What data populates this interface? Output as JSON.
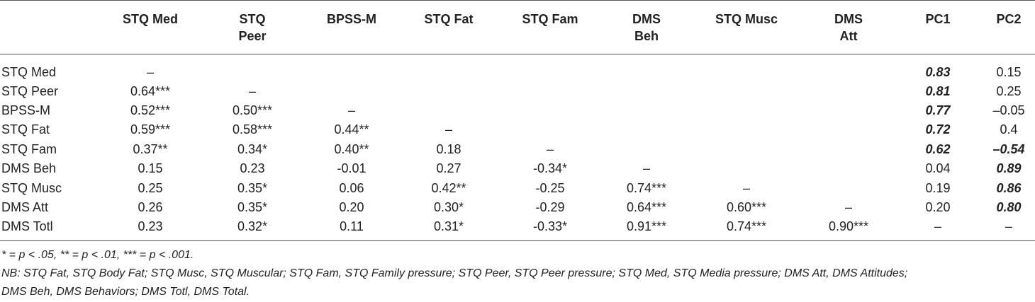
{
  "table": {
    "headers": [
      {
        "lines": [
          ""
        ]
      },
      {
        "lines": [
          "STQ Med"
        ]
      },
      {
        "lines": [
          "STQ",
          "Peer"
        ]
      },
      {
        "lines": [
          "BPSS-M"
        ]
      },
      {
        "lines": [
          "STQ Fat"
        ]
      },
      {
        "lines": [
          "STQ Fam"
        ]
      },
      {
        "lines": [
          "DMS",
          "Beh"
        ]
      },
      {
        "lines": [
          "STQ Musc"
        ]
      },
      {
        "lines": [
          "DMS",
          "Att"
        ]
      },
      {
        "lines": [
          "PC1"
        ]
      },
      {
        "lines": [
          "PC2"
        ]
      }
    ],
    "rows": [
      {
        "label": "STQ Med",
        "cells": [
          "–",
          "",
          "",
          "",
          "",
          "",
          "",
          "",
          "0.83",
          "0.15"
        ],
        "bold_italic": [
          8
        ]
      },
      {
        "label": "STQ Peer",
        "cells": [
          "0.64***",
          "–",
          "",
          "",
          "",
          "",
          "",
          "",
          "0.81",
          "0.25"
        ],
        "bold_italic": [
          8
        ]
      },
      {
        "label": "BPSS-M",
        "cells": [
          "0.52***",
          "0.50***",
          "–",
          "",
          "",
          "",
          "",
          "",
          "0.77",
          "–0.05"
        ],
        "bold_italic": [
          8
        ]
      },
      {
        "label": "STQ Fat",
        "cells": [
          "0.59***",
          "0.58***",
          "0.44**",
          "–",
          "",
          "",
          "",
          "",
          "0.72",
          "0.4"
        ],
        "bold_italic": [
          8
        ]
      },
      {
        "label": "STQ Fam",
        "cells": [
          "0.37**",
          "0.34*",
          "0.40**",
          "0.18",
          "–",
          "",
          "",
          "",
          "0.62",
          "–0.54"
        ],
        "bold_italic": [
          8,
          9
        ]
      },
      {
        "label": "DMS Beh",
        "cells": [
          "0.15",
          "0.23",
          "-0.01",
          "0.27",
          "-0.34*",
          "–",
          "",
          "",
          "0.04",
          "0.89"
        ],
        "bold_italic": [
          9
        ]
      },
      {
        "label": "STQ Musc",
        "cells": [
          "0.25",
          "0.35*",
          "0.06",
          "0.42**",
          "-0.25",
          "0.74***",
          "–",
          "",
          "0.19",
          "0.86"
        ],
        "bold_italic": [
          9
        ]
      },
      {
        "label": "DMS Att",
        "cells": [
          "0.26",
          "0.35*",
          "0.20",
          "0.30*",
          "-0.29",
          "0.64***",
          "0.60***",
          "–",
          "0.20",
          "0.80"
        ],
        "bold_italic": [
          9
        ]
      },
      {
        "label": "DMS Totl",
        "cells": [
          "0.23",
          "0.32*",
          "0.11",
          "0.31*",
          "-0.33*",
          "0.91***",
          "0.74***",
          "0.90***",
          "–",
          "–"
        ],
        "bold_italic": []
      }
    ]
  },
  "notes": {
    "significance": "* = p < .05, ** = p < .01, *** = p < .001.",
    "abbreviations_line1": "NB: STQ Fat, STQ Body Fat; STQ Musc, STQ Muscular; STQ Fam, STQ Family pressure; STQ Peer, STQ Peer pressure; STQ Med, STQ Media pressure; DMS Att, DMS Attitudes;",
    "abbreviations_line2": "DMS Beh, DMS Behaviors; DMS Totl, DMS Total."
  }
}
